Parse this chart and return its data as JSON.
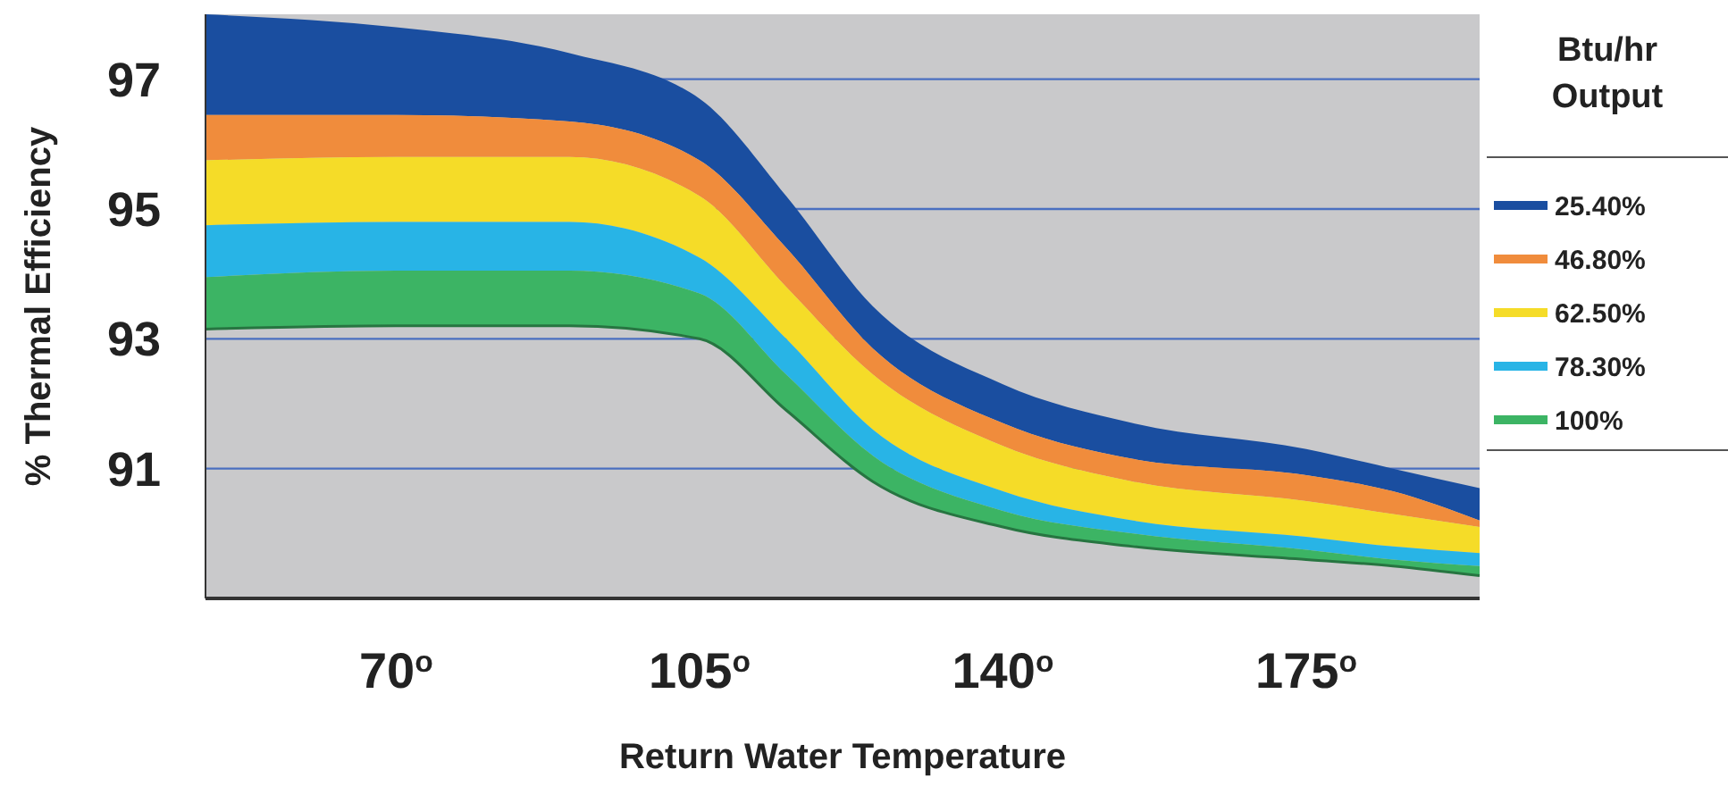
{
  "chart_data": {
    "type": "area",
    "xlabel": "Return Water Temperature",
    "ylabel": "% Thermal Efficiency",
    "legend_title": "Btu/hr Output",
    "legend": "right",
    "grid": "y",
    "xlim": [
      48,
      195
    ],
    "xticks": [
      {
        "value": 70,
        "label": "70$^{o}$"
      },
      {
        "value": 105,
        "label": "105$^{o}$"
      },
      {
        "value": 140,
        "label": "140$^{o}$"
      },
      {
        "value": 175,
        "label": "175$^{o}$"
      }
    ],
    "ylim": [
      89,
      98
    ],
    "yticks": [
      91,
      93,
      95,
      97
    ],
    "x": [
      48,
      70,
      90,
      105,
      115,
      125,
      140,
      155,
      175,
      185,
      195
    ],
    "series": [
      {
        "name": "25.40%",
        "color": "#1a4ea0",
        "values": [
          98.0,
          97.8,
          97.4,
          96.7,
          95.2,
          93.5,
          92.3,
          91.7,
          91.3,
          91.0,
          90.7
        ]
      },
      {
        "name": "46.80%",
        "color": "#f08c3c",
        "values": [
          96.45,
          96.45,
          96.35,
          95.75,
          94.4,
          92.85,
          91.7,
          91.15,
          90.9,
          90.65,
          90.2
        ]
      },
      {
        "name": "62.50%",
        "color": "#f5dc28",
        "values": [
          95.75,
          95.8,
          95.8,
          95.2,
          93.8,
          92.45,
          91.35,
          90.8,
          90.5,
          90.3,
          90.1
        ]
      },
      {
        "name": "78.30%",
        "color": "#28b4e6",
        "values": [
          94.75,
          94.8,
          94.8,
          94.25,
          93.0,
          91.6,
          90.65,
          90.2,
          89.95,
          89.8,
          89.7
        ]
      },
      {
        "name": "100%",
        "color": "#3cb464",
        "values": [
          93.95,
          94.05,
          94.05,
          93.7,
          92.45,
          91.2,
          90.35,
          90.0,
          89.75,
          89.6,
          89.5
        ]
      },
      {
        "type": "line",
        "color": "#277541",
        "values": [
          93.15,
          93.2,
          93.2,
          93.0,
          91.9,
          90.8,
          90.1,
          89.8,
          89.6,
          89.5,
          89.35
        ]
      }
    ]
  }
}
